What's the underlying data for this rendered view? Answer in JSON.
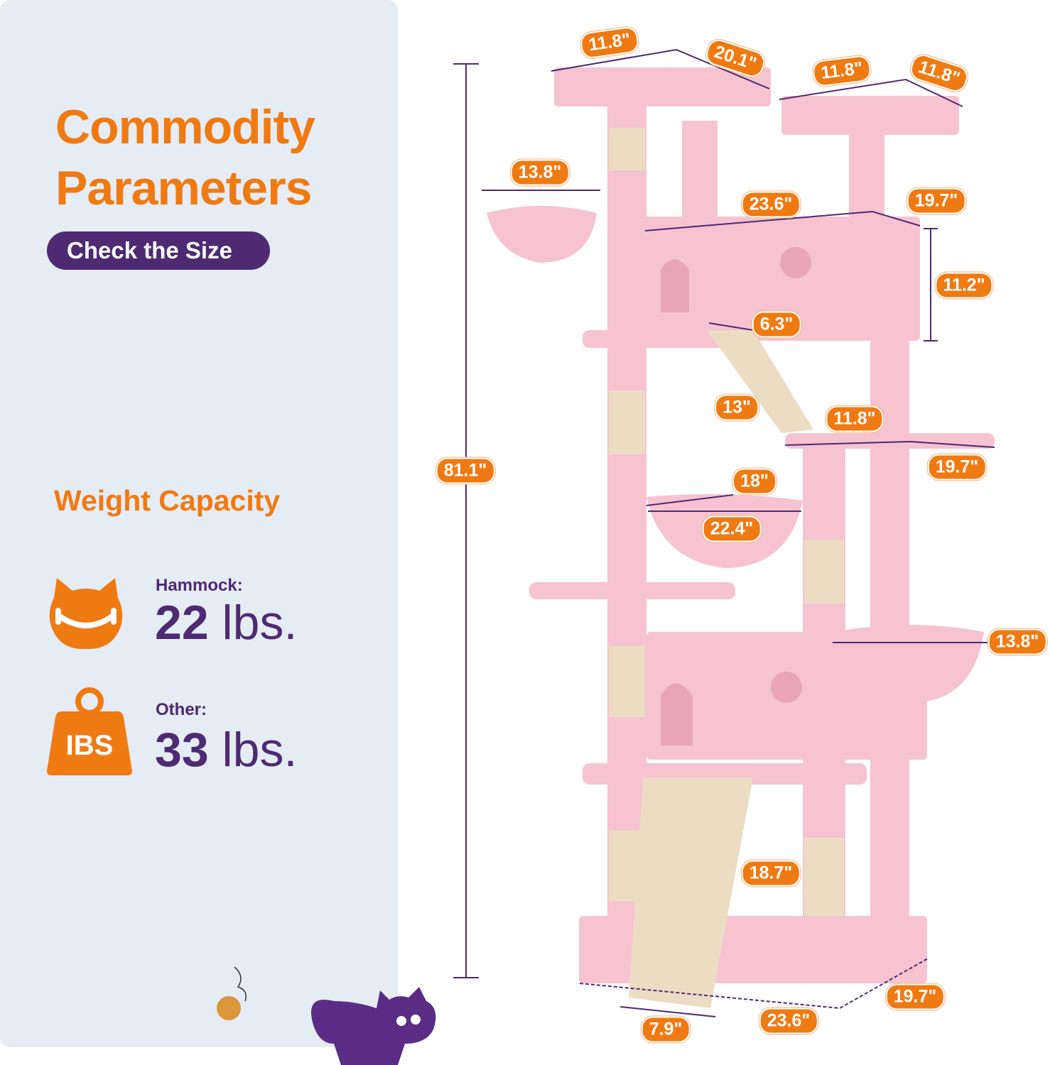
{
  "left_panel": {
    "title_line1": "Commodity",
    "title_line2": "Parameters",
    "check_size_label": "Check the Size",
    "weight_capacity_heading": "Weight Capacity",
    "hammock": {
      "label": "Hammock:",
      "value": "22",
      "unit": "lbs.",
      "icon": "cat-hammock-icon"
    },
    "other": {
      "label": "Other:",
      "value": "33",
      "unit": "lbs.",
      "icon": "weight-icon",
      "icon_text": "IBS"
    }
  },
  "dimensions": [
    "11.8\"",
    "20.1\"",
    "11.8\"",
    "11.8\"",
    "13.8\"",
    "23.6\"",
    "19.7\"",
    "11.2\"",
    "6.3\"",
    "13\"",
    "11.8\"",
    "19.7\"",
    "81.1\"",
    "18\"",
    "22.4\"",
    "13.8\"",
    "18.7\"",
    "19.7\"",
    "23.6\"",
    "7.9\""
  ],
  "colors": {
    "accent_orange": "#f07a12",
    "brand_purple": "#4e2a73",
    "panel_bg": "#e5ecf4",
    "tree_pink": "#f6c3d0",
    "sisal": "#ecdcc4"
  }
}
